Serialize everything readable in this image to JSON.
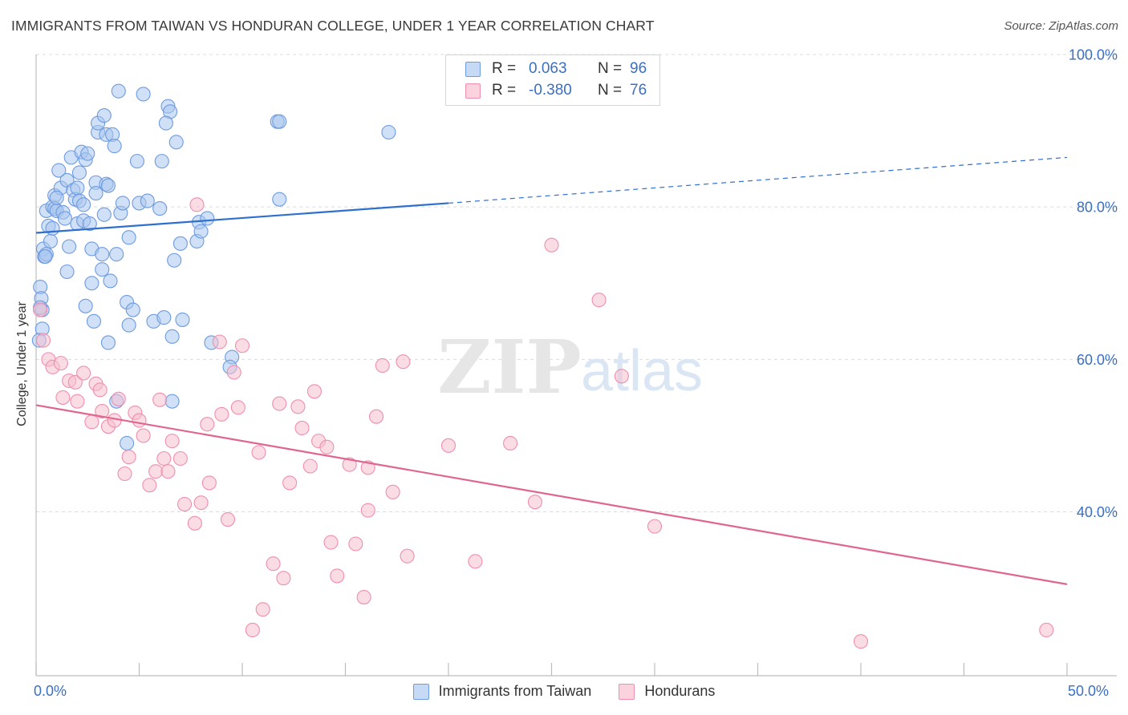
{
  "header": {
    "title": "IMMIGRANTS FROM TAIWAN VS HONDURAN COLLEGE, UNDER 1 YEAR CORRELATION CHART",
    "source": "Source: ZipAtlas.com"
  },
  "watermark": {
    "zip": "ZIP",
    "atlas": "atlas"
  },
  "legend_top": {
    "rows": [
      {
        "r_label": "R =",
        "r_value": "0.063",
        "n_label": "N =",
        "n_value": "96",
        "color": "#6e9be0"
      },
      {
        "r_label": "R =",
        "r_value": "-0.380",
        "n_label": "N =",
        "n_value": "76",
        "color": "#ef8fae"
      }
    ]
  },
  "legend_bottom": [
    {
      "label": "Immigrants from Taiwan",
      "color": "#6e9be0"
    },
    {
      "label": "Hondurans",
      "color": "#ef8fae"
    }
  ],
  "colors": {
    "blue_fill": "#a9c6ef",
    "blue_stroke": "#6e9be0",
    "blue_line": "#2f6fce",
    "pink_fill": "#f6bfd0",
    "pink_stroke": "#ef8fae",
    "pink_line": "#e0658f",
    "tick_label": "#3b6fc4",
    "grid": "#dcdcdc"
  },
  "chart_data": {
    "type": "scatter",
    "title": "IMMIGRANTS FROM TAIWAN VS HONDURAN COLLEGE, UNDER 1 YEAR CORRELATION CHART",
    "xlabel": "",
    "ylabel": "College, Under 1 year",
    "xlim": [
      0,
      50
    ],
    "ylim": [
      18.5,
      100
    ],
    "x_tick_labels": [
      "0.0%",
      "50.0%"
    ],
    "y_ticks": [
      40,
      60,
      80,
      100
    ],
    "y_tick_labels": [
      "40.0%",
      "60.0%",
      "80.0%",
      "100.0%"
    ],
    "grid": true,
    "legend_position": "top-center",
    "series": [
      {
        "name": "Immigrants from Taiwan",
        "r": 0.063,
        "n": 96,
        "trend": {
          "x0": 0,
          "y0": 76.6,
          "x1": 20,
          "y1": 80.5,
          "dashed_to_x": 50,
          "dashed_to_y": 86.5
        },
        "points": [
          [
            0.2,
            69.5
          ],
          [
            0.25,
            68
          ],
          [
            0.3,
            66.5
          ],
          [
            0.3,
            64
          ],
          [
            0.35,
            74.5
          ],
          [
            0.4,
            73.5
          ],
          [
            0.5,
            73.8
          ],
          [
            0.5,
            79.5
          ],
          [
            0.6,
            77.5
          ],
          [
            0.7,
            75.5
          ],
          [
            0.8,
            77.2
          ],
          [
            0.8,
            80
          ],
          [
            0.9,
            81.5
          ],
          [
            0.9,
            79.8
          ],
          [
            1.0,
            79.5
          ],
          [
            1.1,
            84.8
          ],
          [
            1.2,
            82.5
          ],
          [
            1.3,
            79.3
          ],
          [
            1.4,
            78.5
          ],
          [
            1.5,
            71.5
          ],
          [
            1.5,
            83.5
          ],
          [
            1.6,
            74.8
          ],
          [
            1.7,
            86.5
          ],
          [
            1.8,
            82.2
          ],
          [
            1.9,
            81
          ],
          [
            2.0,
            82.5
          ],
          [
            2.0,
            77.8
          ],
          [
            2.1,
            80.8
          ],
          [
            2.1,
            84.5
          ],
          [
            2.2,
            87.2
          ],
          [
            2.3,
            78.2
          ],
          [
            2.4,
            67
          ],
          [
            2.4,
            86.2
          ],
          [
            2.5,
            87
          ],
          [
            2.6,
            77.8
          ],
          [
            2.7,
            70
          ],
          [
            2.7,
            74.5
          ],
          [
            2.8,
            65
          ],
          [
            2.9,
            83.2
          ],
          [
            2.9,
            81.8
          ],
          [
            3.0,
            89.8
          ],
          [
            3.0,
            91
          ],
          [
            3.2,
            73.8
          ],
          [
            3.2,
            71.8
          ],
          [
            3.3,
            79
          ],
          [
            3.4,
            83
          ],
          [
            3.5,
            82.8
          ],
          [
            3.3,
            92
          ],
          [
            3.4,
            89.5
          ],
          [
            3.5,
            62.2
          ],
          [
            3.6,
            70.3
          ],
          [
            3.7,
            89.5
          ],
          [
            3.8,
            88
          ],
          [
            3.9,
            73.8
          ],
          [
            3.9,
            54.5
          ],
          [
            4.0,
            95.2
          ],
          [
            4.1,
            79.2
          ],
          [
            4.2,
            80.5
          ],
          [
            4.4,
            49
          ],
          [
            4.4,
            67.5
          ],
          [
            4.5,
            64.5
          ],
          [
            4.5,
            76
          ],
          [
            4.7,
            66.5
          ],
          [
            4.9,
            86
          ],
          [
            5.0,
            80.5
          ],
          [
            5.2,
            94.8
          ],
          [
            5.4,
            80.8
          ],
          [
            5.7,
            65
          ],
          [
            6.0,
            79.8
          ],
          [
            6.1,
            86
          ],
          [
            6.2,
            65.5
          ],
          [
            6.4,
            93.2
          ],
          [
            6.5,
            92.5
          ],
          [
            6.3,
            91
          ],
          [
            6.6,
            63
          ],
          [
            6.7,
            73
          ],
          [
            6.8,
            88.5
          ],
          [
            7.0,
            75.2
          ],
          [
            7.1,
            65.2
          ],
          [
            6.6,
            54.5
          ],
          [
            7.8,
            75.5
          ],
          [
            7.9,
            78
          ],
          [
            8.0,
            76.8
          ],
          [
            8.3,
            78.5
          ],
          [
            8.5,
            62.2
          ],
          [
            9.5,
            60.3
          ],
          [
            9.4,
            59
          ],
          [
            11.7,
            91.2
          ],
          [
            11.8,
            91.2
          ],
          [
            11.8,
            81
          ],
          [
            17.1,
            89.8
          ],
          [
            0.15,
            62.5
          ],
          [
            0.2,
            66.8
          ],
          [
            0.45,
            73.5
          ],
          [
            1.0,
            81.2
          ],
          [
            2.3,
            80.3
          ]
        ]
      },
      {
        "name": "Hondurans",
        "r": -0.38,
        "n": 76,
        "trend": {
          "x0": 0,
          "y0": 54,
          "x1": 50,
          "y1": 30.5
        },
        "points": [
          [
            0.2,
            66.5
          ],
          [
            0.35,
            62.5
          ],
          [
            0.6,
            60
          ],
          [
            0.8,
            59
          ],
          [
            1.2,
            59.5
          ],
          [
            1.3,
            55
          ],
          [
            1.6,
            57.2
          ],
          [
            1.9,
            57
          ],
          [
            2.0,
            54.5
          ],
          [
            2.3,
            58.2
          ],
          [
            2.7,
            51.8
          ],
          [
            2.9,
            56.8
          ],
          [
            3.1,
            56
          ],
          [
            3.2,
            53.2
          ],
          [
            3.5,
            51.2
          ],
          [
            3.8,
            52
          ],
          [
            4.0,
            54.8
          ],
          [
            4.3,
            45
          ],
          [
            4.5,
            47.2
          ],
          [
            4.8,
            53
          ],
          [
            5.0,
            52
          ],
          [
            5.2,
            50
          ],
          [
            5.5,
            43.5
          ],
          [
            5.8,
            45.3
          ],
          [
            6.0,
            54.7
          ],
          [
            6.2,
            47
          ],
          [
            6.4,
            45.3
          ],
          [
            6.6,
            49.3
          ],
          [
            7.0,
            47
          ],
          [
            7.2,
            41
          ],
          [
            7.7,
            38.5
          ],
          [
            7.8,
            80.3
          ],
          [
            8.0,
            41.2
          ],
          [
            8.4,
            43.8
          ],
          [
            8.3,
            51.5
          ],
          [
            8.9,
            62.3
          ],
          [
            9.0,
            52.8
          ],
          [
            9.3,
            39
          ],
          [
            9.6,
            58.3
          ],
          [
            9.8,
            53.7
          ],
          [
            10.0,
            61.8
          ],
          [
            10.5,
            24.5
          ],
          [
            10.8,
            47.8
          ],
          [
            11.0,
            27.2
          ],
          [
            11.5,
            33.2
          ],
          [
            11.8,
            54.2
          ],
          [
            12.0,
            31.3
          ],
          [
            12.3,
            43.8
          ],
          [
            12.7,
            53.8
          ],
          [
            12.9,
            51
          ],
          [
            13.3,
            46
          ],
          [
            13.5,
            55.8
          ],
          [
            13.7,
            49.3
          ],
          [
            14.1,
            48.5
          ],
          [
            14.3,
            36
          ],
          [
            14.6,
            31.6
          ],
          [
            15.2,
            46.2
          ],
          [
            15.5,
            35.8
          ],
          [
            15.9,
            28.8
          ],
          [
            16.1,
            40.2
          ],
          [
            16.1,
            45.8
          ],
          [
            16.5,
            52.5
          ],
          [
            16.8,
            59.2
          ],
          [
            17.3,
            42.6
          ],
          [
            17.8,
            59.7
          ],
          [
            18.0,
            34.2
          ],
          [
            20.0,
            48.7
          ],
          [
            21.3,
            33.5
          ],
          [
            23.0,
            49
          ],
          [
            24.2,
            41.3
          ],
          [
            25.0,
            75
          ],
          [
            27.3,
            67.8
          ],
          [
            28.4,
            57.8
          ],
          [
            30.0,
            38.1
          ],
          [
            40.0,
            23
          ],
          [
            49.0,
            24.5
          ]
        ]
      }
    ]
  }
}
